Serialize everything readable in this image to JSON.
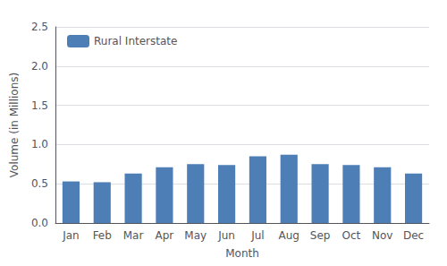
{
  "chart_data": {
    "type": "bar",
    "categories": [
      "Jan",
      "Feb",
      "Mar",
      "Apr",
      "May",
      "Jun",
      "Jul",
      "Aug",
      "Sep",
      "Oct",
      "Nov",
      "Dec"
    ],
    "series": [
      {
        "name": "Rural Interstate",
        "color": "#4d7eb5",
        "values": [
          0.53,
          0.52,
          0.63,
          0.71,
          0.75,
          0.74,
          0.85,
          0.87,
          0.75,
          0.74,
          0.71,
          0.63
        ]
      }
    ],
    "xlabel": "Month",
    "ylabel": "Volume (in Millions)",
    "ylim": [
      0.0,
      2.5
    ],
    "yticks": [
      {
        "value": 0,
        "label": "0.0"
      },
      0.5,
      {
        "value": 1,
        "label": "1.0"
      },
      1.5,
      {
        "value": 2,
        "label": "2.0"
      },
      2.5
    ],
    "grid": true,
    "legend": "upper left"
  }
}
